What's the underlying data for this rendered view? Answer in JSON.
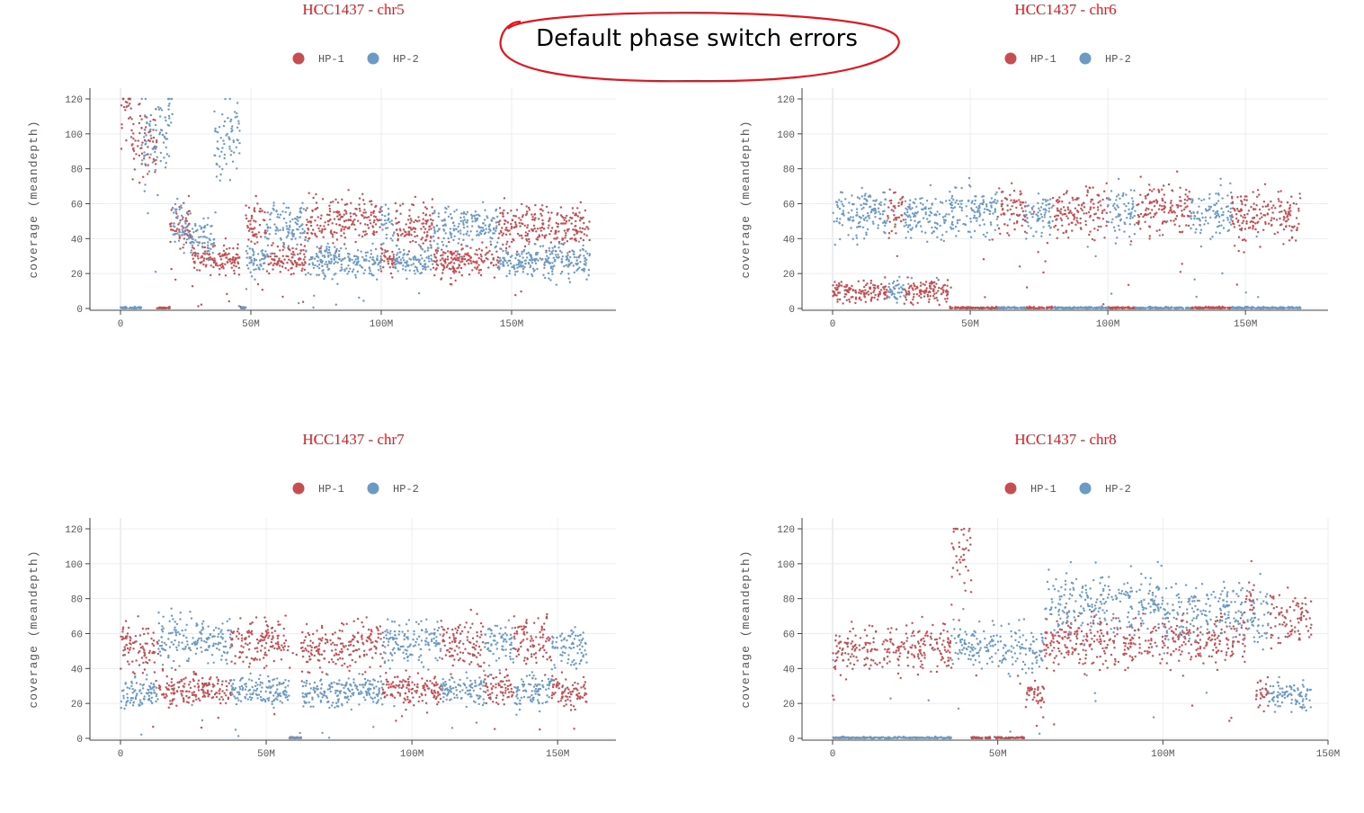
{
  "annotation": {
    "text": "Default phase switch errors",
    "color": "#e8141c"
  },
  "colors": {
    "hp1": "#c44e52",
    "hp2": "#6b9ac4",
    "grid": "#eaeef4",
    "axis": "#444444"
  },
  "chart_data": [
    {
      "type": "scatter",
      "title": "HCC1437 - chr5",
      "xlabel": "",
      "ylabel": "coverage (meandepth)",
      "xlim": [
        0,
        190
      ],
      "ylim": [
        0,
        120
      ],
      "xticks": [
        0,
        50,
        100,
        150
      ],
      "xtick_labels": [
        "0",
        "50M",
        "100M",
        "150M"
      ],
      "yticks": [
        0,
        20,
        40,
        60,
        80,
        100,
        120
      ],
      "legend": "top-center",
      "series": [
        {
          "name": "HP-1",
          "color": "#c44e52",
          "segments": [
            [
              0,
              4,
              120
            ],
            [
              4,
              14,
              95
            ],
            [
              14,
              19,
              0
            ],
            [
              19,
              27,
              47
            ],
            [
              27,
              46,
              28
            ],
            [
              46,
              48,
              0
            ],
            [
              48,
              56,
              48
            ],
            [
              56,
              71,
              28
            ],
            [
              71,
              100,
              50
            ],
            [
              100,
              105,
              28
            ],
            [
              105,
              120,
              48
            ],
            [
              120,
              145,
              27
            ],
            [
              145,
              180,
              47
            ]
          ]
        },
        {
          "name": "HP-2",
          "color": "#6b9ac4",
          "segments": [
            [
              0,
              8,
              0
            ],
            [
              8,
              18,
              98
            ],
            [
              18,
              20,
              120
            ],
            [
              20,
              27,
              46
            ],
            [
              27,
              36,
              40
            ],
            [
              36,
              46,
              95
            ],
            [
              46,
              48,
              0
            ],
            [
              48,
              56,
              28
            ],
            [
              56,
              71,
              48
            ],
            [
              71,
              100,
              27
            ],
            [
              100,
              105,
              48
            ],
            [
              105,
              120,
              27
            ],
            [
              120,
              145,
              47
            ],
            [
              145,
              180,
              27
            ]
          ]
        }
      ]
    },
    {
      "type": "scatter",
      "title": "HCC1437 - chr6",
      "xlabel": "",
      "ylabel": "coverage (meandepth)",
      "xlim": [
        0,
        180
      ],
      "ylim": [
        0,
        120
      ],
      "xticks": [
        0,
        50,
        100,
        150
      ],
      "xtick_labels": [
        "0",
        "50M",
        "100M",
        "150M"
      ],
      "yticks": [
        0,
        20,
        40,
        60,
        80,
        100,
        120
      ],
      "legend": "top-center",
      "series": [
        {
          "name": "HP-1",
          "color": "#c44e52",
          "segments": [
            [
              0,
              20,
              10
            ],
            [
              20,
              26,
              55
            ],
            [
              26,
              42,
              10
            ],
            [
              42,
              60,
              0
            ],
            [
              60,
              70,
              57
            ],
            [
              70,
              80,
              0
            ],
            [
              80,
              100,
              55
            ],
            [
              100,
              110,
              0
            ],
            [
              110,
              130,
              57
            ],
            [
              130,
              145,
              0
            ],
            [
              145,
              170,
              53
            ]
          ]
        },
        {
          "name": "HP-2",
          "color": "#6b9ac4",
          "segments": [
            [
              0,
              20,
              55
            ],
            [
              20,
              26,
              10
            ],
            [
              26,
              42,
              53
            ],
            [
              42,
              60,
              55
            ],
            [
              60,
              70,
              0
            ],
            [
              70,
              80,
              55
            ],
            [
              80,
              100,
              0
            ],
            [
              100,
              110,
              56
            ],
            [
              110,
              130,
              0
            ],
            [
              130,
              145,
              55
            ],
            [
              145,
              170,
              0
            ]
          ]
        }
      ]
    },
    {
      "type": "scatter",
      "title": "HCC1437 - chr7",
      "xlabel": "",
      "ylabel": "coverage (meandepth)",
      "xlim": [
        0,
        170
      ],
      "ylim": [
        0,
        120
      ],
      "xticks": [
        0,
        50,
        100,
        150
      ],
      "xtick_labels": [
        "0",
        "50M",
        "100M",
        "150M"
      ],
      "yticks": [
        0,
        20,
        40,
        60,
        80,
        100,
        120
      ],
      "legend": "top-center",
      "series": [
        {
          "name": "HP-1",
          "color": "#c44e52",
          "segments": [
            [
              0,
              13,
              52
            ],
            [
              13,
              23,
              28
            ],
            [
              23,
              38,
              28
            ],
            [
              38,
              45,
              55
            ],
            [
              45,
              58,
              55
            ],
            [
              58,
              62,
              0
            ],
            [
              62,
              80,
              52
            ],
            [
              80,
              90,
              55
            ],
            [
              90,
              110,
              28
            ],
            [
              110,
              125,
              55
            ],
            [
              125,
              135,
              28
            ],
            [
              135,
              148,
              55
            ],
            [
              148,
              160,
              27
            ]
          ]
        },
        {
          "name": "HP-2",
          "color": "#6b9ac4",
          "segments": [
            [
              0,
              13,
              26
            ],
            [
              13,
              23,
              57
            ],
            [
              23,
              38,
              55
            ],
            [
              38,
              45,
              28
            ],
            [
              45,
              58,
              27
            ],
            [
              58,
              62,
              0
            ],
            [
              62,
              80,
              26
            ],
            [
              80,
              90,
              28
            ],
            [
              90,
              110,
              55
            ],
            [
              110,
              125,
              27
            ],
            [
              125,
              135,
              55
            ],
            [
              135,
              148,
              27
            ],
            [
              148,
              160,
              53
            ]
          ]
        }
      ]
    },
    {
      "type": "scatter",
      "title": "HCC1437 - chr8",
      "xlabel": "",
      "ylabel": "coverage (meandepth)",
      "xlim": [
        0,
        150
      ],
      "ylim": [
        0,
        120
      ],
      "xticks": [
        0,
        50,
        100,
        150
      ],
      "xtick_labels": [
        "0",
        "50M",
        "100M",
        "150M"
      ],
      "yticks": [
        0,
        20,
        40,
        60,
        80,
        100,
        120
      ],
      "legend": "top-center",
      "series": [
        {
          "name": "HP-1",
          "color": "#c44e52",
          "segments": [
            [
              0,
              36,
              52
            ],
            [
              36,
              42,
              105
            ],
            [
              42,
              46,
              0
            ],
            [
              46,
              58,
              0
            ],
            [
              58,
              64,
              25
            ],
            [
              64,
              100,
              55
            ],
            [
              100,
              125,
              57
            ],
            [
              125,
              128,
              80
            ],
            [
              128,
              132,
              25
            ],
            [
              132,
              145,
              68
            ]
          ]
        },
        {
          "name": "HP-2",
          "color": "#6b9ac4",
          "segments": [
            [
              0,
              36,
              0
            ],
            [
              36,
              42,
              55
            ],
            [
              42,
              58,
              53
            ],
            [
              58,
              64,
              50
            ],
            [
              64,
              100,
              78
            ],
            [
              100,
              125,
              72
            ],
            [
              125,
              128,
              70
            ],
            [
              128,
              132,
              70
            ],
            [
              132,
              145,
              25
            ]
          ]
        }
      ]
    }
  ]
}
